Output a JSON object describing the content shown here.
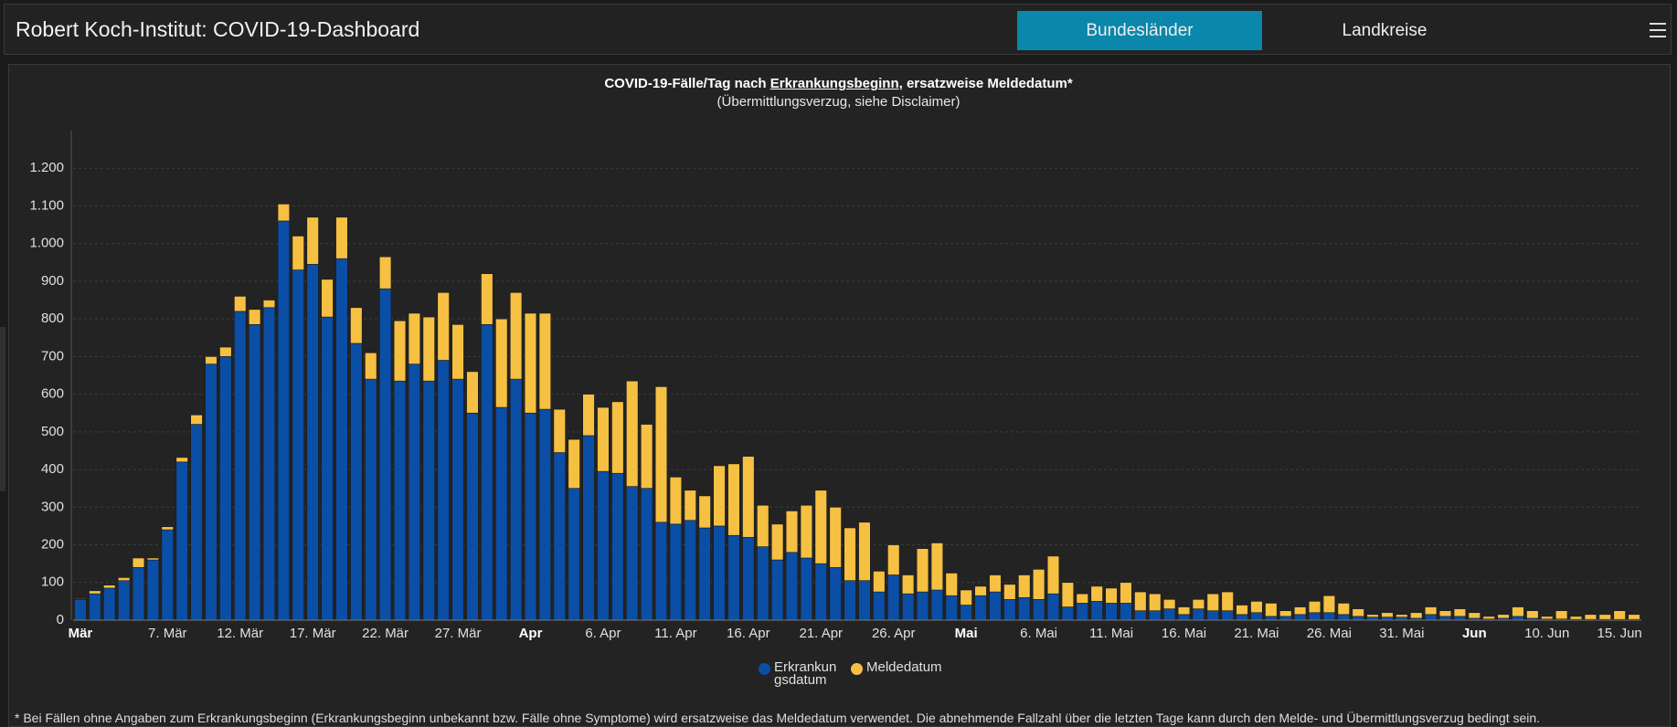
{
  "header": {
    "title": "Robert Koch-Institut: COVID-19-Dashboard",
    "tabs": [
      "Bundesländer",
      "Landkreise"
    ]
  },
  "chart_data": {
    "type": "bar",
    "stacked": true,
    "title_parts": [
      "COVID-19-Fälle/Tag nach ",
      "Erkrankungsbeginn",
      ", ersatzweise Meldedatum*"
    ],
    "subtitle": "(Übermittlungsverzug, siehe Disclaimer)",
    "categories": [
      "Mär",
      null,
      null,
      null,
      null,
      null,
      "7. Mär",
      null,
      null,
      null,
      null,
      "12. Mär",
      null,
      null,
      null,
      null,
      "17. Mär",
      null,
      null,
      null,
      null,
      "22. Mär",
      null,
      null,
      null,
      null,
      "27. Mär",
      null,
      null,
      null,
      null,
      "Apr",
      null,
      null,
      null,
      null,
      "6. Apr",
      null,
      null,
      null,
      null,
      "11. Apr",
      null,
      null,
      null,
      null,
      "16. Apr",
      null,
      null,
      null,
      null,
      "21. Apr",
      null,
      null,
      null,
      null,
      "26. Apr",
      null,
      null,
      null,
      null,
      "Mai",
      null,
      null,
      null,
      null,
      "6. Mai",
      null,
      null,
      null,
      null,
      "11. Mai",
      null,
      null,
      null,
      null,
      "16. Mai",
      null,
      null,
      null,
      null,
      "21. Mai",
      null,
      null,
      null,
      null,
      "26. Mai",
      null,
      null,
      null,
      null,
      "31. Mai",
      null,
      null,
      null,
      null,
      "Jun",
      null,
      null,
      null,
      null,
      "10. Jun",
      null,
      null,
      null,
      null,
      "15. Jun",
      null
    ],
    "series": [
      {
        "name": "Erkrankungsdatum",
        "color": "#0b4ea6",
        "values": [
          55,
          70,
          85,
          105,
          140,
          160,
          240,
          420,
          520,
          680,
          700,
          820,
          785,
          830,
          1060,
          930,
          945,
          805,
          960,
          735,
          640,
          880,
          635,
          680,
          635,
          690,
          640,
          550,
          785,
          565,
          640,
          550,
          560,
          445,
          350,
          490,
          395,
          390,
          355,
          350,
          260,
          255,
          265,
          245,
          250,
          225,
          220,
          195,
          160,
          180,
          165,
          150,
          140,
          105,
          105,
          75,
          120,
          70,
          75,
          80,
          65,
          40,
          65,
          75,
          55,
          60,
          55,
          70,
          35,
          45,
          50,
          45,
          45,
          25,
          25,
          30,
          15,
          30,
          25,
          25,
          15,
          20,
          10,
          10,
          15,
          20,
          20,
          15,
          10,
          8,
          8,
          8,
          5,
          15,
          10,
          10,
          5,
          3,
          5,
          10,
          5,
          3,
          3,
          2,
          2,
          2,
          2,
          2
        ]
      },
      {
        "name": "Meldedatum",
        "color": "#f6c042",
        "values": [
          2,
          8,
          8,
          8,
          25,
          5,
          8,
          12,
          25,
          20,
          25,
          40,
          40,
          20,
          45,
          90,
          125,
          100,
          110,
          95,
          70,
          85,
          160,
          135,
          170,
          180,
          145,
          110,
          135,
          235,
          230,
          265,
          255,
          115,
          130,
          110,
          170,
          190,
          280,
          170,
          360,
          125,
          80,
          85,
          160,
          190,
          215,
          110,
          95,
          110,
          140,
          195,
          160,
          140,
          155,
          55,
          80,
          50,
          115,
          125,
          60,
          40,
          25,
          45,
          40,
          60,
          80,
          100,
          65,
          25,
          40,
          40,
          55,
          50,
          45,
          25,
          20,
          25,
          45,
          50,
          25,
          30,
          35,
          15,
          20,
          30,
          45,
          30,
          20,
          7,
          12,
          7,
          15,
          20,
          15,
          20,
          15,
          7,
          10,
          25,
          20,
          7,
          22,
          8,
          13,
          13,
          23,
          13
        ]
      }
    ],
    "ylim": [
      0,
      1300
    ],
    "yticks": [
      0,
      100,
      200,
      300,
      400,
      500,
      600,
      700,
      800,
      900,
      {
        "value": 1000,
        "label": "1.000"
      },
      {
        "value": 1100,
        "label": "1.100"
      },
      {
        "value": 1200,
        "label": "1.200"
      }
    ],
    "grid": true,
    "legend": "bottom"
  },
  "footnote": "* Bei Fällen ohne Angaben zum Erkrankungsbeginn (Erkrankungsbeginn unbekannt bzw. Fälle ohne Symptome) wird ersatzweise das Meldedatum verwendet. Die abnehmende Fallzahl über die letzten Tage kann durch den Melde- und Übermittlungsverzug bedingt sein."
}
